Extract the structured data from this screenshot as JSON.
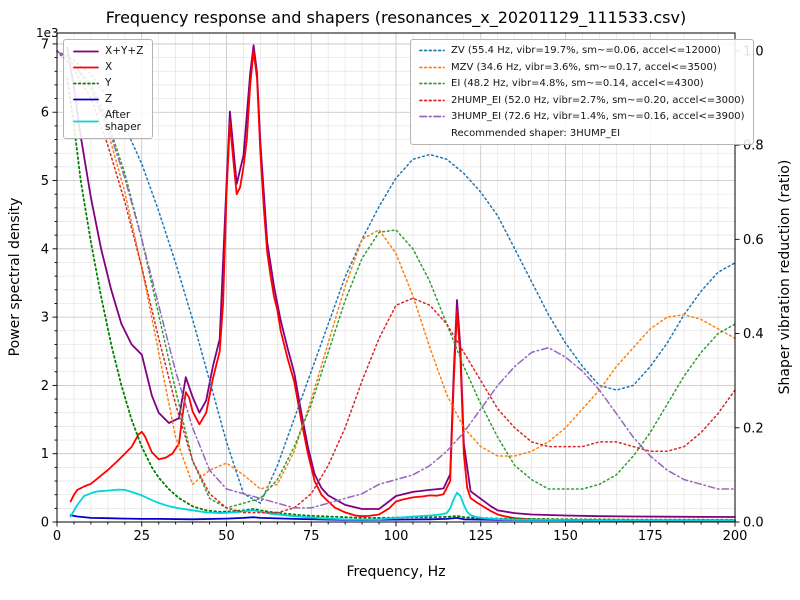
{
  "chart_data": {
    "type": "line",
    "title": "Frequency response and shapers (resonances_x_20201129_111533.csv)",
    "xlabel": "Frequency, Hz",
    "ylabel_left": "Power spectral density",
    "ylabel_right": "Shaper vibration reduction (ratio)",
    "offset_text": "1e3",
    "xlim": [
      0,
      200
    ],
    "ylim_left": [
      0,
      7160
    ],
    "ylim_right": [
      0,
      1.038
    ],
    "x_ticks": [
      0,
      25,
      50,
      75,
      100,
      125,
      150,
      175,
      200
    ],
    "y_ticks_left": [
      0,
      1,
      2,
      3,
      4,
      5,
      6,
      7
    ],
    "y_ticks_right": [
      "0.0",
      "0.2",
      "0.4",
      "0.6",
      "0.8",
      "1.0"
    ],
    "grid": "major+minor",
    "recommended_label": "Recommended shaper: 3HUMP_EI",
    "psd_series": [
      {
        "name": "sum",
        "label": "X+Y+Z",
        "color": "#800080",
        "style": "solid",
        "x": [
          3,
          5,
          7,
          10,
          13,
          16,
          19,
          22,
          25,
          28,
          30,
          33,
          36,
          38,
          40,
          42,
          44,
          46,
          48,
          50,
          51,
          53,
          55,
          57,
          58,
          59,
          60,
          62,
          64,
          66,
          68,
          70,
          72,
          74,
          76,
          78,
          80,
          85,
          90,
          95,
          100,
          105,
          110,
          114,
          116,
          117,
          118,
          119,
          120,
          122,
          125,
          128,
          130,
          135,
          140,
          150,
          160,
          170,
          180,
          190,
          200
        ],
        "y": [
          6950,
          6350,
          5650,
          4750,
          4000,
          3400,
          2900,
          2600,
          2450,
          1850,
          1600,
          1450,
          1520,
          2120,
          1830,
          1600,
          1780,
          2280,
          2680,
          4950,
          6010,
          4950,
          5370,
          6570,
          6980,
          6580,
          5550,
          4100,
          3450,
          2950,
          2550,
          2180,
          1620,
          1100,
          700,
          500,
          390,
          250,
          190,
          190,
          380,
          440,
          470,
          490,
          700,
          2150,
          3250,
          2550,
          1150,
          450,
          340,
          230,
          170,
          130,
          110,
          95,
          85,
          80,
          78,
          75,
          73
        ]
      },
      {
        "name": "x",
        "label": "X",
        "color": "#ff0000",
        "style": "solid",
        "x": [
          4,
          5,
          6,
          8,
          10,
          12,
          15,
          18,
          20,
          22,
          24,
          25,
          26,
          28,
          30,
          32,
          34,
          36,
          37,
          38,
          39,
          40,
          42,
          44,
          46,
          48,
          49,
          50,
          51,
          52,
          53,
          54,
          55,
          56,
          57,
          58,
          59,
          60,
          61,
          62,
          63,
          64,
          65,
          66,
          68,
          70,
          72,
          74,
          75,
          76,
          78,
          80,
          82,
          85,
          88,
          90,
          92,
          95,
          98,
          100,
          102,
          105,
          108,
          110,
          112,
          114,
          116,
          117,
          118,
          119,
          120,
          121,
          122,
          124,
          126,
          128,
          130,
          132,
          135,
          140,
          145,
          150,
          160,
          170,
          180,
          190,
          200
        ],
        "y": [
          300,
          400,
          470,
          520,
          560,
          640,
          760,
          900,
          1000,
          1100,
          1280,
          1320,
          1250,
          1020,
          920,
          940,
          1000,
          1150,
          1550,
          1900,
          1820,
          1620,
          1430,
          1600,
          2100,
          2500,
          3200,
          4800,
          5850,
          5300,
          4800,
          4900,
          5200,
          5600,
          6400,
          6900,
          6500,
          5400,
          4600,
          3950,
          3600,
          3300,
          3100,
          2800,
          2400,
          2050,
          1500,
          1000,
          800,
          600,
          400,
          300,
          210,
          140,
          95,
          85,
          90,
          110,
          200,
          300,
          330,
          360,
          375,
          390,
          385,
          405,
          600,
          2000,
          3100,
          2400,
          1000,
          500,
          350,
          280,
          220,
          160,
          110,
          85,
          55,
          38,
          32,
          27,
          23,
          21,
          20,
          20,
          20
        ]
      },
      {
        "name": "y",
        "label": "Y",
        "color": "#008000",
        "style": "dotted",
        "x": [
          3,
          5,
          7,
          10,
          13,
          16,
          19,
          22,
          25,
          28,
          30,
          33,
          36,
          40,
          44,
          48,
          52,
          55,
          58,
          60,
          64,
          68,
          72,
          76,
          80,
          85,
          90,
          95,
          100,
          105,
          110,
          115,
          118,
          120,
          125,
          130,
          140,
          150,
          160,
          170,
          180,
          190,
          200
        ],
        "y": [
          6500,
          5800,
          5000,
          4100,
          3300,
          2600,
          2000,
          1500,
          1100,
          800,
          650,
          480,
          350,
          230,
          170,
          150,
          160,
          170,
          190,
          170,
          140,
          120,
          100,
          90,
          80,
          70,
          60,
          60,
          65,
          70,
          70,
          75,
          90,
          70,
          60,
          50,
          45,
          40,
          38,
          35,
          35,
          33,
          32
        ]
      },
      {
        "name": "z",
        "label": "Z",
        "color": "#0000cc",
        "style": "solid",
        "x": [
          4,
          6,
          10,
          15,
          20,
          25,
          30,
          40,
          50,
          55,
          58,
          60,
          70,
          80,
          90,
          100,
          110,
          115,
          118,
          120,
          130,
          140,
          160,
          180,
          200
        ],
        "y": [
          100,
          80,
          60,
          55,
          50,
          45,
          45,
          40,
          50,
          60,
          70,
          60,
          45,
          35,
          30,
          35,
          40,
          45,
          60,
          40,
          32,
          30,
          26,
          25,
          25
        ]
      },
      {
        "name": "after-shaper",
        "label": "After\nshaper",
        "color": "#00d5dd",
        "style": "solid",
        "x": [
          4,
          6,
          8,
          10,
          12,
          15,
          18,
          20,
          22,
          25,
          28,
          30,
          33,
          36,
          40,
          44,
          48,
          50,
          53,
          55,
          57,
          58,
          60,
          63,
          66,
          70,
          74,
          78,
          82,
          86,
          90,
          95,
          100,
          105,
          110,
          113,
          115,
          116,
          117,
          118,
          119,
          120,
          121,
          122,
          124,
          126,
          128,
          130,
          135,
          140,
          150,
          160,
          170,
          180,
          190,
          200
        ],
        "y": [
          80,
          250,
          380,
          420,
          450,
          460,
          475,
          470,
          440,
          390,
          320,
          280,
          230,
          200,
          170,
          140,
          130,
          135,
          145,
          155,
          165,
          170,
          150,
          120,
          105,
          85,
          70,
          55,
          45,
          38,
          35,
          40,
          60,
          80,
          95,
          110,
          130,
          200,
          330,
          430,
          380,
          250,
          150,
          100,
          70,
          55,
          48,
          42,
          35,
          32,
          30,
          28,
          27,
          26,
          25,
          25
        ]
      }
    ],
    "shaper_x": [
      0,
      5,
      10,
      15,
      20,
      25,
      30,
      35,
      40,
      45,
      50,
      55,
      60,
      65,
      70,
      75,
      80,
      85,
      90,
      95,
      100,
      105,
      110,
      115,
      120,
      125,
      130,
      135,
      140,
      145,
      150,
      155,
      160,
      165,
      170,
      175,
      180,
      185,
      190,
      195,
      200
    ],
    "shaper_series": [
      {
        "name": "ZV",
        "label": "ZV (55.4 Hz, vibr=19.7%, sm~=0.06, accel<=12000)",
        "color": "#1f77b4",
        "style": "dotted",
        "y": [
          1.0,
          0.98,
          0.95,
          0.9,
          0.84,
          0.76,
          0.66,
          0.55,
          0.43,
          0.3,
          0.17,
          0.06,
          0.04,
          0.12,
          0.22,
          0.32,
          0.42,
          0.52,
          0.6,
          0.67,
          0.73,
          0.77,
          0.78,
          0.77,
          0.74,
          0.7,
          0.65,
          0.58,
          0.51,
          0.44,
          0.38,
          0.33,
          0.29,
          0.28,
          0.29,
          0.33,
          0.38,
          0.44,
          0.49,
          0.53,
          0.55
        ]
      },
      {
        "name": "MZV",
        "label": "MZV (34.6 Hz, vibr=3.6%, sm~=0.17, accel<=3500)",
        "color": "#ff7f0e",
        "style": "dotted",
        "y": [
          1.0,
          0.97,
          0.92,
          0.83,
          0.7,
          0.54,
          0.36,
          0.18,
          0.08,
          0.11,
          0.125,
          0.1,
          0.07,
          0.08,
          0.15,
          0.26,
          0.38,
          0.5,
          0.6,
          0.62,
          0.57,
          0.48,
          0.37,
          0.27,
          0.2,
          0.16,
          0.14,
          0.14,
          0.15,
          0.17,
          0.2,
          0.24,
          0.28,
          0.33,
          0.37,
          0.41,
          0.435,
          0.44,
          0.43,
          0.41,
          0.39
        ]
      },
      {
        "name": "EI",
        "label": "EI (48.2 Hz, vibr=4.8%, sm~=0.14, accel<=4300)",
        "color": "#2ca02c",
        "style": "dotted",
        "y": [
          1.0,
          0.97,
          0.93,
          0.85,
          0.74,
          0.6,
          0.44,
          0.28,
          0.13,
          0.05,
          0.03,
          0.04,
          0.05,
          0.09,
          0.16,
          0.25,
          0.36,
          0.47,
          0.56,
          0.615,
          0.62,
          0.58,
          0.51,
          0.42,
          0.33,
          0.25,
          0.18,
          0.12,
          0.09,
          0.07,
          0.07,
          0.07,
          0.08,
          0.1,
          0.14,
          0.19,
          0.25,
          0.31,
          0.36,
          0.4,
          0.42
        ]
      },
      {
        "name": "2HUMP_EI",
        "label": "2HUMP_EI (52.0 Hz, vibr=2.7%, sm~=0.20, accel<=3000)",
        "color": "#d62728",
        "style": "dotted",
        "y": [
          1.0,
          0.96,
          0.9,
          0.8,
          0.68,
          0.54,
          0.39,
          0.25,
          0.13,
          0.06,
          0.03,
          0.02,
          0.02,
          0.02,
          0.03,
          0.06,
          0.12,
          0.2,
          0.3,
          0.39,
          0.46,
          0.475,
          0.46,
          0.42,
          0.36,
          0.3,
          0.24,
          0.2,
          0.17,
          0.16,
          0.16,
          0.16,
          0.17,
          0.17,
          0.16,
          0.15,
          0.15,
          0.16,
          0.19,
          0.23,
          0.28
        ]
      },
      {
        "name": "3HUMP_EI",
        "label": "3HUMP_EI (72.6 Hz, vibr=1.4%, sm~=0.16, accel<=3900)",
        "color": "#9467bd",
        "style": "dashdot",
        "y": [
          1.0,
          0.97,
          0.92,
          0.84,
          0.73,
          0.6,
          0.46,
          0.32,
          0.2,
          0.11,
          0.07,
          0.06,
          0.05,
          0.04,
          0.03,
          0.03,
          0.04,
          0.05,
          0.06,
          0.08,
          0.09,
          0.1,
          0.12,
          0.15,
          0.19,
          0.24,
          0.29,
          0.33,
          0.36,
          0.37,
          0.35,
          0.32,
          0.28,
          0.23,
          0.18,
          0.14,
          0.11,
          0.09,
          0.08,
          0.07,
          0.07
        ]
      }
    ]
  }
}
